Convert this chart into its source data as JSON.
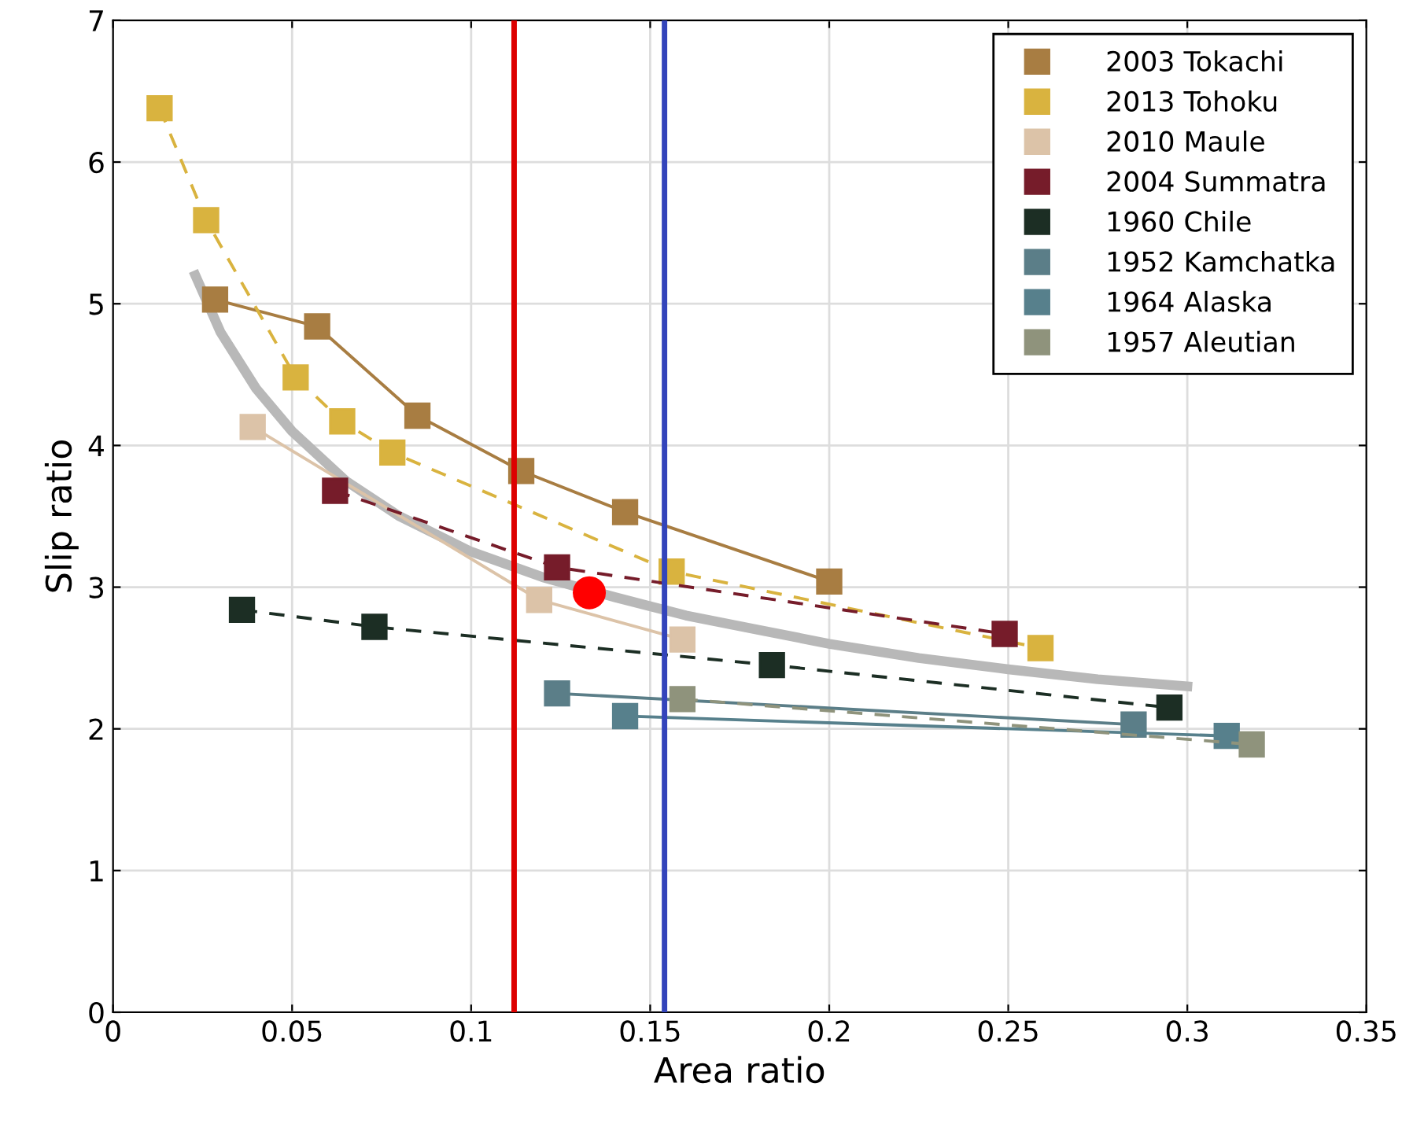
{
  "chart_data": {
    "type": "line",
    "xlabel": "Area ratio",
    "ylabel": "Slip ratio",
    "xlim": [
      0,
      0.35
    ],
    "ylim": [
      0,
      7
    ],
    "xticks": [
      0,
      0.05,
      0.1,
      0.15,
      0.2,
      0.25,
      0.3,
      0.35
    ],
    "yticks": [
      0,
      1,
      2,
      3,
      4,
      5,
      6,
      7
    ],
    "grid": true,
    "legend": "top right",
    "marker": "square",
    "series": [
      {
        "name": "2003 Tokachi",
        "color": "#a87d42",
        "line_style": "solid",
        "x": [
          0.0285,
          0.057,
          0.085,
          0.114,
          0.143,
          0.2
        ],
        "values": [
          5.03,
          4.84,
          4.21,
          3.82,
          3.53,
          3.04
        ]
      },
      {
        "name": "2013 Tohoku",
        "color": "#d9b33f",
        "line_style": "dashed",
        "x": [
          0.013,
          0.026,
          0.051,
          0.064,
          0.078,
          0.156,
          0.259
        ],
        "values": [
          6.38,
          5.59,
          4.48,
          4.17,
          3.95,
          3.11,
          2.57
        ]
      },
      {
        "name": "2010 Maule",
        "color": "#dcc3a8",
        "line_style": "solid",
        "x": [
          0.039,
          0.119,
          0.159
        ],
        "values": [
          4.13,
          2.91,
          2.63
        ]
      },
      {
        "name": "2004 Summatra",
        "color": "#761c2a",
        "line_style": "dashed",
        "x": [
          0.062,
          0.124,
          0.249
        ],
        "values": [
          3.68,
          3.14,
          2.67
        ]
      },
      {
        "name": "1960 Chile",
        "color": "#1c2e24",
        "line_style": "dashed",
        "x": [
          0.036,
          0.073,
          0.184,
          0.295
        ],
        "values": [
          2.84,
          2.72,
          2.45,
          2.15
        ]
      },
      {
        "name": "1952 Kamchatka",
        "color": "#5b7e88",
        "line_style": "solid",
        "x": [
          0.124,
          0.285
        ],
        "values": [
          2.25,
          2.03
        ]
      },
      {
        "name": "1964 Alaska",
        "color": "#57808c",
        "line_style": "solid",
        "x": [
          0.143,
          0.311
        ],
        "values": [
          2.09,
          1.95
        ]
      },
      {
        "name": "1957 Aleutian",
        "color": "#8f937c",
        "line_style": "dashed",
        "x": [
          0.159,
          0.318
        ],
        "values": [
          2.21,
          1.89
        ]
      },
      {
        "color": "#b8b8b8",
        "line_style": "solid",
        "marker": "none",
        "x": [
          0.023,
          0.03,
          0.04,
          0.05,
          0.065,
          0.08,
          0.1,
          0.12,
          0.14,
          0.16,
          0.18,
          0.2,
          0.225,
          0.25,
          0.275,
          0.3
        ],
        "values": [
          5.2,
          4.8,
          4.4,
          4.1,
          3.75,
          3.5,
          3.25,
          3.07,
          2.93,
          2.8,
          2.7,
          2.6,
          2.5,
          2.42,
          2.35,
          2.3
        ]
      },
      {
        "type": "scatter",
        "color": "#ff0000",
        "marker": "circle",
        "x": [
          0.133
        ],
        "values": [
          2.96
        ]
      }
    ],
    "ref_lines": [
      {
        "axis": "x",
        "value": 0.112,
        "color": "#dd0000"
      },
      {
        "axis": "x",
        "value": 0.154,
        "color": "#3344bb"
      }
    ]
  }
}
